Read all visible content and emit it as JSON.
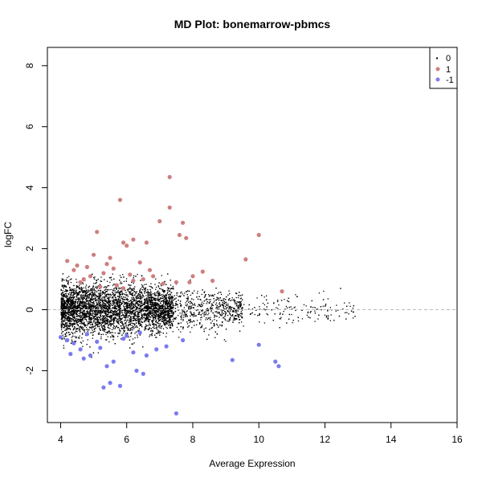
{
  "chart_data": {
    "type": "scatter",
    "title": "MD Plot: bonemarrow-pbmcs",
    "xlabel": "Average Expression",
    "ylabel": "logFC",
    "xlim": [
      3.6,
      16
    ],
    "ylim": [
      -3.7,
      8.6
    ],
    "xticks": [
      4,
      6,
      8,
      10,
      12,
      14,
      16
    ],
    "yticks": [
      -2,
      0,
      2,
      4,
      6,
      8
    ],
    "reference_line": {
      "y": 0,
      "style": "dashed",
      "color": "#bbbbbb"
    },
    "legend": {
      "position": "top-right",
      "entries": [
        "0",
        "1",
        "-1"
      ]
    },
    "colors": {
      "0": "#000000",
      "1": "#cd7f7f",
      "-1": "#7b7bf0"
    },
    "series": [
      {
        "name": "1",
        "x": [
          7.3,
          5.8,
          7.3,
          7.0,
          7.7,
          7.8,
          7.6,
          5.1,
          10.0,
          6.2,
          5.9,
          6.0,
          6.6,
          9.6,
          4.2,
          5.4,
          4.5,
          4.8,
          5.6,
          6.7,
          8.3,
          8.0,
          6.5,
          10.7,
          4.6,
          4.9,
          5.3,
          5.7,
          6.2,
          7.1,
          7.5,
          5.0,
          4.4,
          5.5,
          6.8,
          7.9,
          5.2,
          6.4,
          8.6,
          5.9,
          4.7,
          6.1
        ],
        "y": [
          4.35,
          3.6,
          3.35,
          2.9,
          2.85,
          2.35,
          2.45,
          2.55,
          2.45,
          2.3,
          2.2,
          2.1,
          2.2,
          1.65,
          1.6,
          1.5,
          1.45,
          1.4,
          1.35,
          1.3,
          1.25,
          1.1,
          1.0,
          0.6,
          0.9,
          1.1,
          1.2,
          0.8,
          0.95,
          0.85,
          0.9,
          1.8,
          1.3,
          1.7,
          1.1,
          0.9,
          0.75,
          1.55,
          0.95,
          0.7,
          1.0,
          1.15
        ]
      },
      {
        "name": "-1",
        "x": [
          7.5,
          5.8,
          5.3,
          5.5,
          6.5,
          6.3,
          4.3,
          4.4,
          4.6,
          4.9,
          5.6,
          6.2,
          6.6,
          7.2,
          7.7,
          9.2,
          10.0,
          10.6,
          10.5,
          4.0,
          4.8,
          5.1,
          5.9,
          6.4,
          6.9,
          4.2,
          5.4,
          4.7,
          6.0,
          5.2
        ],
        "y": [
          -3.4,
          -2.5,
          -2.55,
          -2.4,
          -2.1,
          -2.0,
          -1.45,
          -1.1,
          -1.3,
          -1.5,
          -1.7,
          -1.4,
          -1.5,
          -1.2,
          -1.0,
          -1.65,
          -1.15,
          -1.85,
          -1.7,
          -0.9,
          -0.8,
          -1.05,
          -0.95,
          -0.75,
          -1.3,
          -1.0,
          -1.85,
          -1.6,
          -0.85,
          -1.25
        ]
      }
    ]
  }
}
